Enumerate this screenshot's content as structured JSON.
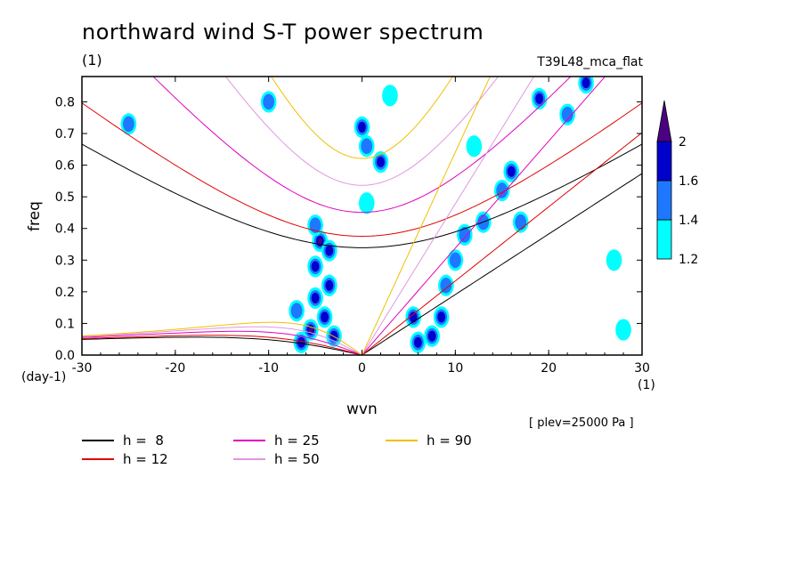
{
  "header": {
    "title": "northward wind S-T power spectrum",
    "subtitle_left": "(1)",
    "subtitle_right": "T39L48_mca_flat",
    "note": "[ plev=25000 Pa ]"
  },
  "colors": {
    "background": "#ffffff",
    "level_1_2": "#00ffff",
    "level_1_4": "#1e78ff",
    "level_1_6": "#0000cd",
    "level_2": "#4b0082",
    "h8": "#000000",
    "h12": "#e00000",
    "h25": "#e000c0",
    "h50": "#e096e0",
    "h90": "#f0c000"
  },
  "chart_data": {
    "type": "heatmap",
    "title": "northward wind S-T power spectrum",
    "xlabel": "wvn",
    "ylabel": "freq",
    "x_unit": "(1)",
    "y_unit": "(day-1)",
    "xlim": [
      -30,
      30
    ],
    "ylim": [
      0,
      0.88
    ],
    "xticks": [
      -30,
      -20,
      -10,
      0,
      10,
      20,
      30
    ],
    "xtick_labels": [
      "-30",
      "-20",
      "-10",
      "0",
      "10",
      "20",
      "30"
    ],
    "yticks": [
      0,
      0.1,
      0.2,
      0.3,
      0.4,
      0.5,
      0.6,
      0.7,
      0.8
    ],
    "ytick_labels": [
      "0.0",
      "0.1",
      "0.2",
      "0.3",
      "0.4",
      "0.5",
      "0.6",
      "0.7",
      "0.8"
    ],
    "colorbar": {
      "levels": [
        1.2,
        1.4,
        1.6,
        2
      ],
      "labels": [
        "1.2",
        "1.4",
        "1.6",
        "2"
      ],
      "colors": [
        "#00ffff",
        "#1e78ff",
        "#0000cd",
        "#4b0082"
      ]
    },
    "legend": [
      {
        "label": "h =  8",
        "color": "#000000"
      },
      {
        "label": "h = 12",
        "color": "#e00000"
      },
      {
        "label": "h = 25",
        "color": "#e000c0"
      },
      {
        "label": "h = 50",
        "color": "#e096e0"
      },
      {
        "label": "h = 90",
        "color": "#f0c000"
      }
    ],
    "blobs": [
      {
        "x": -4.5,
        "y": 0.36,
        "value": 2.0
      },
      {
        "x": -3.5,
        "y": 0.33,
        "value": 1.8
      },
      {
        "x": -5,
        "y": 0.28,
        "value": 1.8
      },
      {
        "x": -3.5,
        "y": 0.22,
        "value": 1.7
      },
      {
        "x": -5,
        "y": 0.18,
        "value": 1.8
      },
      {
        "x": -4,
        "y": 0.12,
        "value": 1.8
      },
      {
        "x": -5.5,
        "y": 0.08,
        "value": 2.0
      },
      {
        "x": -6.5,
        "y": 0.04,
        "value": 1.7
      },
      {
        "x": -3,
        "y": 0.06,
        "value": 1.7
      },
      {
        "x": -7,
        "y": 0.14,
        "value": 1.5
      },
      {
        "x": -5,
        "y": 0.41,
        "value": 1.4
      },
      {
        "x": 6,
        "y": 0.04,
        "value": 1.8
      },
      {
        "x": 7.5,
        "y": 0.06,
        "value": 1.8
      },
      {
        "x": 5.5,
        "y": 0.12,
        "value": 1.7
      },
      {
        "x": 8.5,
        "y": 0.12,
        "value": 1.6
      },
      {
        "x": 9,
        "y": 0.22,
        "value": 1.5
      },
      {
        "x": 10,
        "y": 0.3,
        "value": 1.4
      },
      {
        "x": 11,
        "y": 0.38,
        "value": 1.5
      },
      {
        "x": 13,
        "y": 0.42,
        "value": 1.4
      },
      {
        "x": 16,
        "y": 0.58,
        "value": 1.6
      },
      {
        "x": 15,
        "y": 0.52,
        "value": 1.5
      },
      {
        "x": 17,
        "y": 0.42,
        "value": 1.4
      },
      {
        "x": 19,
        "y": 0.81,
        "value": 1.7
      },
      {
        "x": 24,
        "y": 0.86,
        "value": 1.7
      },
      {
        "x": 2,
        "y": 0.61,
        "value": 1.6
      },
      {
        "x": 0,
        "y": 0.72,
        "value": 1.6
      },
      {
        "x": 0.5,
        "y": 0.66,
        "value": 1.5
      },
      {
        "x": -10,
        "y": 0.8,
        "value": 1.4
      },
      {
        "x": -25,
        "y": 0.73,
        "value": 1.4
      },
      {
        "x": 3,
        "y": 0.82,
        "value": 1.3
      },
      {
        "x": 0.5,
        "y": 0.48,
        "value": 1.3
      },
      {
        "x": 12,
        "y": 0.66,
        "value": 1.3
      },
      {
        "x": 22,
        "y": 0.76,
        "value": 1.4
      },
      {
        "x": 27,
        "y": 0.3,
        "value": 1.3
      },
      {
        "x": 28,
        "y": 0.08,
        "value": 1.3
      }
    ]
  },
  "legend_labels": [
    "h =  8",
    "h = 12",
    "h = 25",
    "h = 50",
    "h = 90"
  ]
}
